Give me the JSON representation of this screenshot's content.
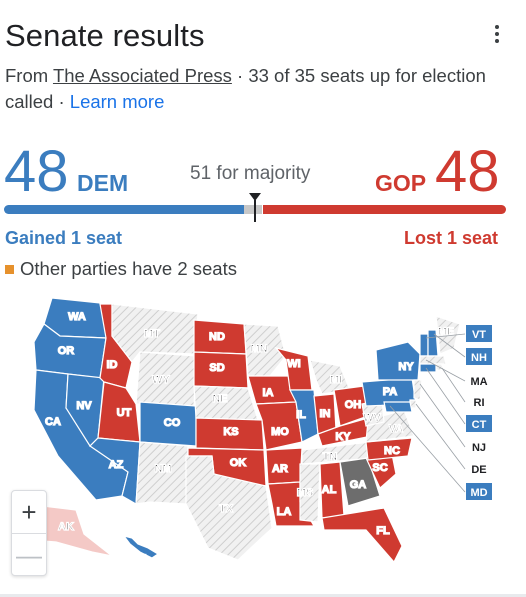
{
  "header": {
    "title": "Senate results",
    "more_icon": "more-vert-icon"
  },
  "source": {
    "from": "From ",
    "publisher": "The Associated Press",
    "called_text": " · 33 of 35 seats up for election called · ",
    "learn_more": "Learn more"
  },
  "tally": {
    "dem_seats": "48",
    "dem_label": "DEM",
    "majority": "51 for majority",
    "gop_label": "GOP",
    "gop_seats": "48",
    "other_seats": 2,
    "dem_change": "Gained 1 seat",
    "gop_change": "Lost 1 seat",
    "other_note": "Other parties have 2 seats"
  },
  "colors": {
    "dem": "#3b7dbf",
    "gop": "#cf3a30",
    "other": "#e6912c",
    "undecided": "#6d6d6d",
    "no_race": "#ececec"
  },
  "map": {
    "states": [
      {
        "abbr": "WA",
        "party": "dem"
      },
      {
        "abbr": "OR",
        "party": "dem"
      },
      {
        "abbr": "CA",
        "party": "dem"
      },
      {
        "abbr": "NV",
        "party": "dem"
      },
      {
        "abbr": "ID",
        "party": "gop"
      },
      {
        "abbr": "MT",
        "party": "none"
      },
      {
        "abbr": "WY",
        "party": "none"
      },
      {
        "abbr": "UT",
        "party": "gop"
      },
      {
        "abbr": "AZ",
        "party": "dem"
      },
      {
        "abbr": "CO",
        "party": "dem"
      },
      {
        "abbr": "NM",
        "party": "none"
      },
      {
        "abbr": "ND",
        "party": "gop"
      },
      {
        "abbr": "SD",
        "party": "gop"
      },
      {
        "abbr": "NE",
        "party": "none"
      },
      {
        "abbr": "KS",
        "party": "gop"
      },
      {
        "abbr": "OK",
        "party": "gop"
      },
      {
        "abbr": "TX",
        "party": "none"
      },
      {
        "abbr": "MN",
        "party": "none"
      },
      {
        "abbr": "IA",
        "party": "gop"
      },
      {
        "abbr": "MO",
        "party": "gop"
      },
      {
        "abbr": "AR",
        "party": "gop"
      },
      {
        "abbr": "LA",
        "party": "gop"
      },
      {
        "abbr": "WI",
        "party": "gop"
      },
      {
        "abbr": "IL",
        "party": "dem"
      },
      {
        "abbr": "MI",
        "party": "none"
      },
      {
        "abbr": "IN",
        "party": "gop"
      },
      {
        "abbr": "OH",
        "party": "gop"
      },
      {
        "abbr": "KY",
        "party": "gop"
      },
      {
        "abbr": "TN",
        "party": "none"
      },
      {
        "abbr": "MS",
        "party": "none"
      },
      {
        "abbr": "AL",
        "party": "gop"
      },
      {
        "abbr": "GA",
        "party": "undecided"
      },
      {
        "abbr": "FL",
        "party": "gop"
      },
      {
        "abbr": "SC",
        "party": "gop"
      },
      {
        "abbr": "NC",
        "party": "gop"
      },
      {
        "abbr": "VA",
        "party": "none"
      },
      {
        "abbr": "WV",
        "party": "none"
      },
      {
        "abbr": "PA",
        "party": "dem"
      },
      {
        "abbr": "NY",
        "party": "dem"
      },
      {
        "abbr": "VT",
        "party": "dem"
      },
      {
        "abbr": "NH",
        "party": "dem"
      },
      {
        "abbr": "ME",
        "party": "none"
      },
      {
        "abbr": "MA",
        "party": "none"
      },
      {
        "abbr": "RI",
        "party": "none"
      },
      {
        "abbr": "CT",
        "party": "dem"
      },
      {
        "abbr": "NJ",
        "party": "none"
      },
      {
        "abbr": "DE",
        "party": "none"
      },
      {
        "abbr": "MD",
        "party": "dem"
      },
      {
        "abbr": "AK",
        "party": "gop-light"
      },
      {
        "abbr": "HI",
        "party": "dem"
      }
    ]
  },
  "zoom": {
    "in_label": "+",
    "out_label": "—"
  }
}
